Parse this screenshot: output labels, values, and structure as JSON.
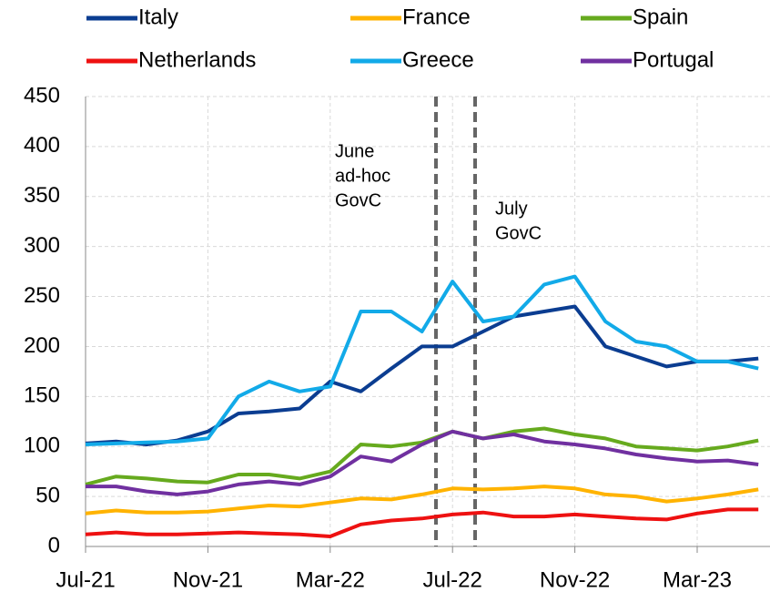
{
  "chart_data": {
    "type": "line",
    "categories": [
      "Jul-21",
      null,
      null,
      null,
      "Nov-21",
      null,
      null,
      null,
      "Mar-22",
      null,
      null,
      null,
      "Jul-22",
      null,
      null,
      null,
      "Nov-22",
      null,
      null,
      null,
      "Mar-23",
      null,
      null
    ],
    "series": [
      {
        "name": "Italy",
        "color": "#0b3d91",
        "values": [
          103,
          105,
          102,
          106,
          115,
          133,
          135,
          138,
          165,
          155,
          178,
          200,
          200,
          215,
          230,
          235,
          240,
          200,
          190,
          180,
          185,
          185,
          188
        ]
      },
      {
        "name": "France",
        "color": "#ffb300",
        "values": [
          33,
          36,
          34,
          34,
          35,
          38,
          41,
          40,
          44,
          48,
          47,
          52,
          58,
          57,
          58,
          60,
          58,
          52,
          50,
          45,
          48,
          52,
          57
        ]
      },
      {
        "name": "Spain",
        "color": "#66aa1e",
        "values": [
          62,
          70,
          68,
          65,
          64,
          72,
          72,
          68,
          75,
          102,
          100,
          104,
          115,
          108,
          115,
          118,
          112,
          108,
          100,
          98,
          96,
          100,
          106
        ]
      },
      {
        "name": "Netherlands",
        "color": "#ee1111",
        "values": [
          12,
          14,
          12,
          12,
          13,
          14,
          13,
          12,
          10,
          22,
          26,
          28,
          32,
          34,
          30,
          30,
          32,
          30,
          28,
          27,
          33,
          37,
          37
        ]
      },
      {
        "name": "Greece",
        "color": "#12aae8",
        "values": [
          102,
          103,
          104,
          105,
          108,
          150,
          165,
          155,
          160,
          235,
          235,
          215,
          265,
          225,
          230,
          262,
          270,
          225,
          205,
          200,
          185,
          185,
          178
        ]
      },
      {
        "name": "Portugal",
        "color": "#7030a0",
        "values": [
          60,
          60,
          55,
          52,
          55,
          62,
          65,
          62,
          70,
          90,
          85,
          102,
          115,
          108,
          112,
          105,
          102,
          98,
          92,
          88,
          85,
          86,
          82
        ]
      }
    ],
    "annotations": [
      [
        "June",
        "ad-hoc",
        "GovC"
      ],
      [
        "July",
        "GovC"
      ]
    ],
    "ylim": [
      0,
      450
    ],
    "yticks": [
      0,
      50,
      100,
      150,
      200,
      250,
      300,
      350,
      400,
      450
    ],
    "grid": true
  }
}
